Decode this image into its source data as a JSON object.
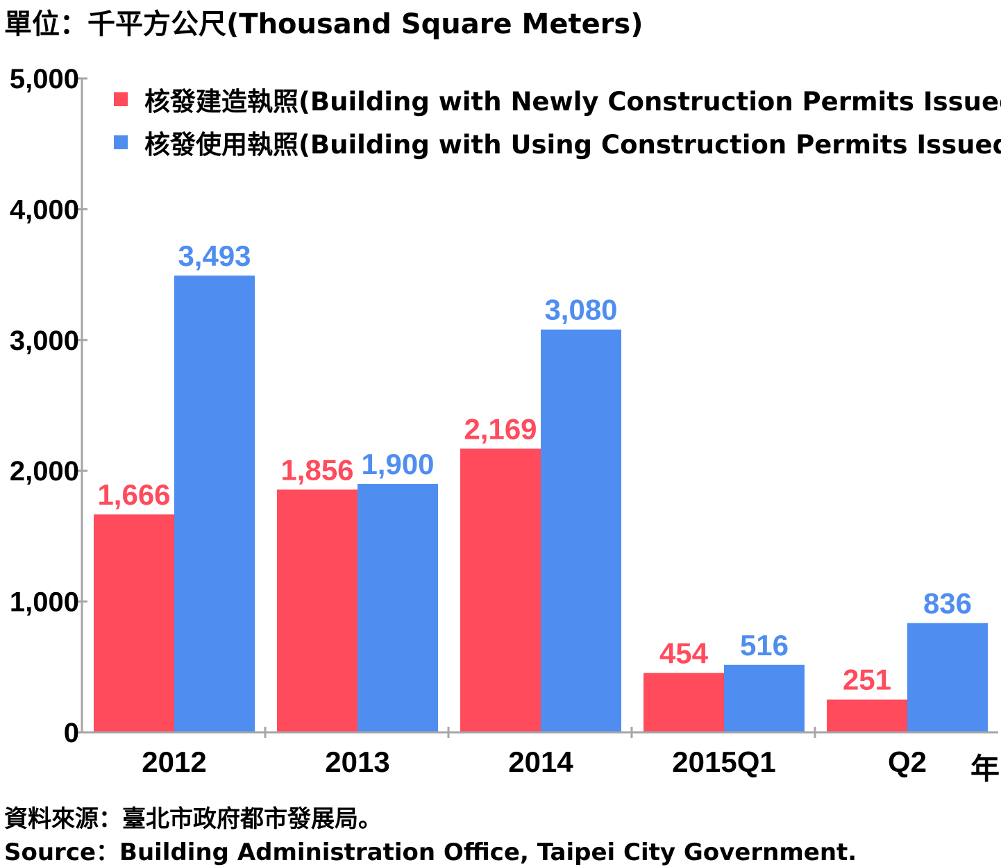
{
  "unit_label": "單位：千平方公尺(Thousand Square Meters)",
  "year_suffix": "年",
  "source_zh": "資料來源：臺北市政府都市發展局。",
  "source_en": "Source：Building Administration Office, Taipei City Government.",
  "colors": {
    "series1": "#ff4b5c",
    "series2": "#4f8ef0",
    "axis": "#a6a6a6"
  },
  "chart_data": {
    "type": "bar",
    "categories": [
      "2012",
      "2013",
      "2014",
      "2015Q1",
      "Q2"
    ],
    "series": [
      {
        "name": "核發建造執照(Building with Newly Construction Permits Issued)",
        "values": [
          1666,
          1856,
          2169,
          454,
          251
        ],
        "labels": [
          "1,666",
          "1,856",
          "2,169",
          "454",
          "251"
        ]
      },
      {
        "name": "核發使用執照(Building with Using Construction Permits Issued)",
        "values": [
          3493,
          1900,
          3080,
          516,
          836
        ],
        "labels": [
          "3,493",
          "1,900",
          "3,080",
          "516",
          "836"
        ]
      }
    ],
    "ylim": [
      0,
      5000
    ],
    "yticks": [
      0,
      1000,
      2000,
      3000,
      4000,
      5000
    ],
    "ytick_labels": [
      "0",
      "1,000",
      "2,000",
      "3,000",
      "4,000",
      "5,000"
    ],
    "legend": "top-left",
    "grid": false
  }
}
